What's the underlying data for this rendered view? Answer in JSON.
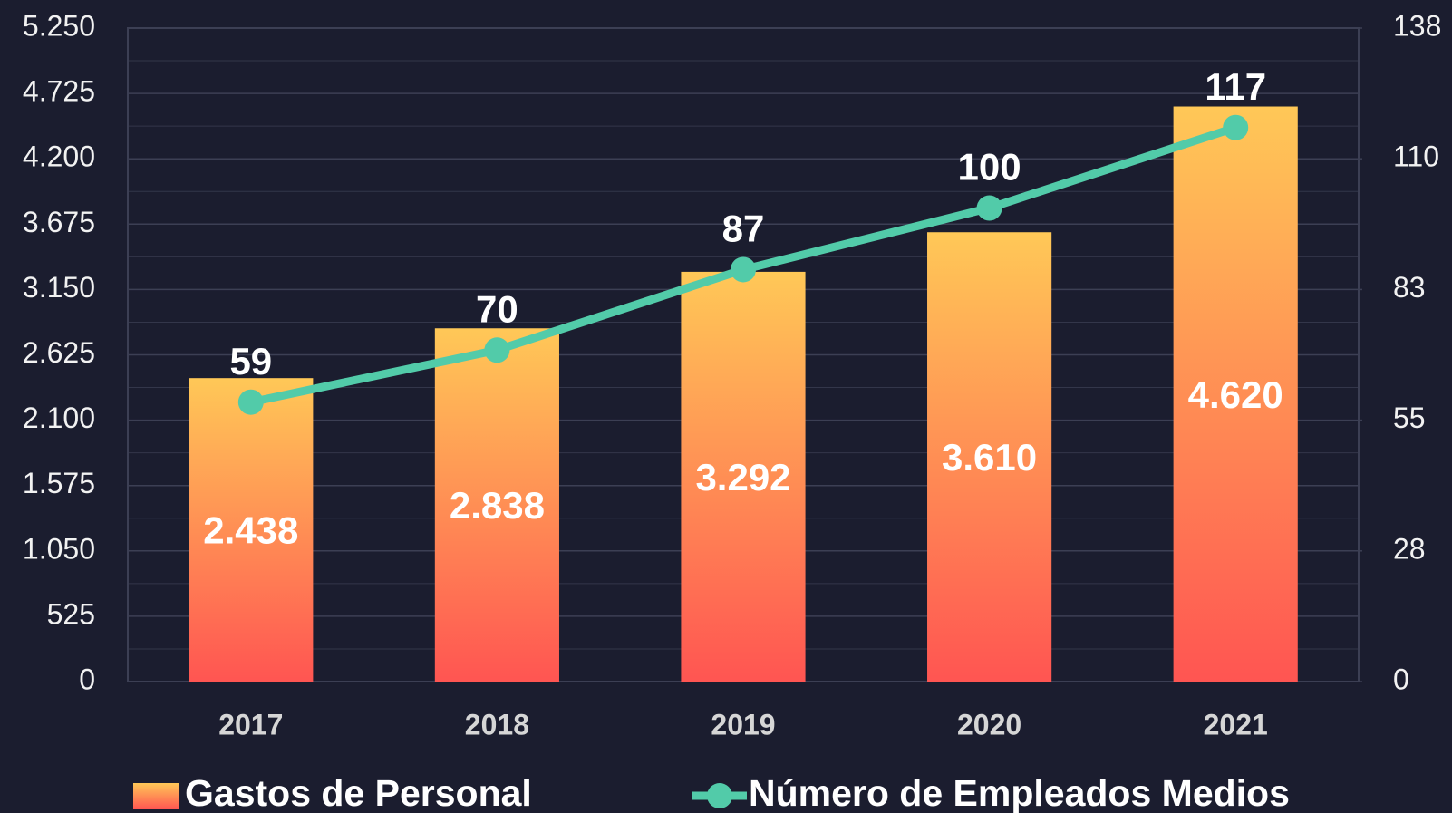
{
  "chart_data": {
    "type": "bar",
    "categories": [
      "2017",
      "2018",
      "2019",
      "2020",
      "2021"
    ],
    "series": [
      {
        "name": "Gastos de Personal",
        "type": "bar",
        "gradient": [
          "#ffc857",
          "#ff5552"
        ],
        "values": [
          2438,
          2838,
          3292,
          3610,
          4620
        ],
        "value_labels": [
          "2.438",
          "2.838",
          "3.292",
          "3.610",
          "4.620"
        ]
      },
      {
        "name": "Número de Empleados Medios",
        "type": "line",
        "axis": "y2",
        "color": "#52cba9",
        "values": [
          59,
          70,
          87,
          100,
          117
        ]
      }
    ],
    "ylim": [
      0,
      5250
    ],
    "yticks": [
      0,
      525,
      {
        "value": 1050,
        "label": "1.050"
      },
      {
        "value": 1575,
        "label": "1.575"
      },
      {
        "value": 2100,
        "label": "2.100"
      },
      {
        "value": 2625,
        "label": "2.625"
      },
      {
        "value": 3150,
        "label": "3.150"
      },
      {
        "value": 3675,
        "label": "3.675"
      },
      {
        "value": 4200,
        "label": "4.200"
      },
      {
        "value": 4725,
        "label": "4.725"
      },
      {
        "value": 5250,
        "label": "5.250"
      }
    ],
    "y2lim": [
      0,
      138
    ],
    "y2ticks": [
      0,
      {
        "value": 27.6,
        "label": "28"
      },
      {
        "value": 55.2,
        "label": "55"
      },
      {
        "value": 82.8,
        "label": "83"
      },
      {
        "value": 110.4,
        "label": "110"
      },
      138
    ],
    "grid": true,
    "legend": "bottom"
  }
}
